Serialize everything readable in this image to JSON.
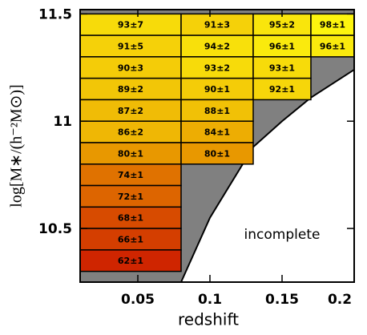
{
  "chart_data": {
    "type": "binned-grid",
    "xlabel": "redshift",
    "ylabel": "log[M∗/(h⁻²M⊙)]",
    "xlim": [
      0.01,
      0.2
    ],
    "ylim": [
      10.25,
      11.52
    ],
    "xticks": [
      0.05,
      0.1,
      0.15,
      0.2
    ],
    "yticks": [
      10.5,
      11,
      11.5
    ],
    "background": "#808080",
    "colormap": [
      [
        60,
        "#cc1800"
      ],
      [
        80,
        "#e89800"
      ],
      [
        100,
        "#ffff10"
      ]
    ],
    "ybins": [
      11.5,
      11.4,
      11.3,
      11.2,
      11.1,
      11.0,
      10.9,
      10.8,
      10.7,
      10.6,
      10.5,
      10.4,
      10.3
    ],
    "columns": [
      {
        "xbins": [
          0.01,
          0.08
        ],
        "values": [
          93,
          91,
          90,
          89,
          87,
          86,
          80,
          74,
          72,
          68,
          66,
          62
        ],
        "errors": [
          7,
          5,
          3,
          2,
          2,
          2,
          1,
          1,
          1,
          1,
          1,
          1
        ],
        "value_labels": [
          "93±7",
          "91±5",
          "90±3",
          "89±2",
          "87±2",
          "86±2",
          "80±1",
          "74±1",
          "72±1",
          "68±1",
          "66±1",
          "62±1"
        ]
      },
      {
        "xbins": [
          0.08,
          0.13
        ],
        "values": [
          91,
          94,
          93,
          90,
          88,
          84,
          80
        ],
        "errors": [
          3,
          2,
          2,
          1,
          1,
          1,
          1
        ],
        "value_labels": [
          "91±3",
          "94±2",
          "93±2",
          "90±1",
          "88±1",
          "84±1",
          "80±1"
        ]
      },
      {
        "xbins": [
          0.13,
          0.17
        ],
        "values": [
          95,
          96,
          93,
          92
        ],
        "errors": [
          2,
          1,
          1,
          1
        ],
        "value_labels": [
          "95±2",
          "96±1",
          "93±1",
          "92±1"
        ]
      },
      {
        "xbins": [
          0.17,
          0.2
        ],
        "values": [
          98,
          96
        ],
        "errors": [
          1,
          1
        ],
        "value_labels": [
          "98±1",
          "96±1"
        ]
      }
    ],
    "curve": {
      "x": [
        0.08,
        0.1,
        0.13,
        0.15,
        0.17,
        0.2
      ],
      "y": [
        10.25,
        10.55,
        10.88,
        11.0,
        11.11,
        11.24
      ]
    },
    "annotation": "incomplete"
  }
}
